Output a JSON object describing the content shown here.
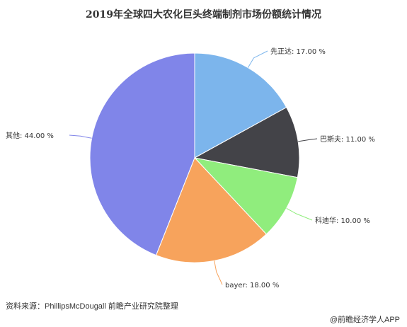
{
  "chart_data": {
    "type": "pie",
    "title": "2019年全球四大农化巨头终端制剂市场份额统计情况",
    "slices": [
      {
        "label": "先正达",
        "value": 17.0,
        "display": "先正达: 17.00 %",
        "color": "#7cb5ec"
      },
      {
        "label": "巴斯夫",
        "value": 11.0,
        "display": "巴斯夫: 11.00 %",
        "color": "#434348"
      },
      {
        "label": "科迪华",
        "value": 10.0,
        "display": "科迪华: 10.00 %",
        "color": "#90ed7d"
      },
      {
        "label": "bayer",
        "value": 18.0,
        "display": "bayer: 18.00 %",
        "color": "#f7a35c"
      },
      {
        "label": "其他",
        "value": 44.0,
        "display": "其他: 44.00 %",
        "color": "#8085e9"
      }
    ]
  },
  "footer": {
    "source": "资料来源：PhillipsMcDougall 前瞻产业研究院整理",
    "credit": "@前瞻经济学人APP"
  }
}
